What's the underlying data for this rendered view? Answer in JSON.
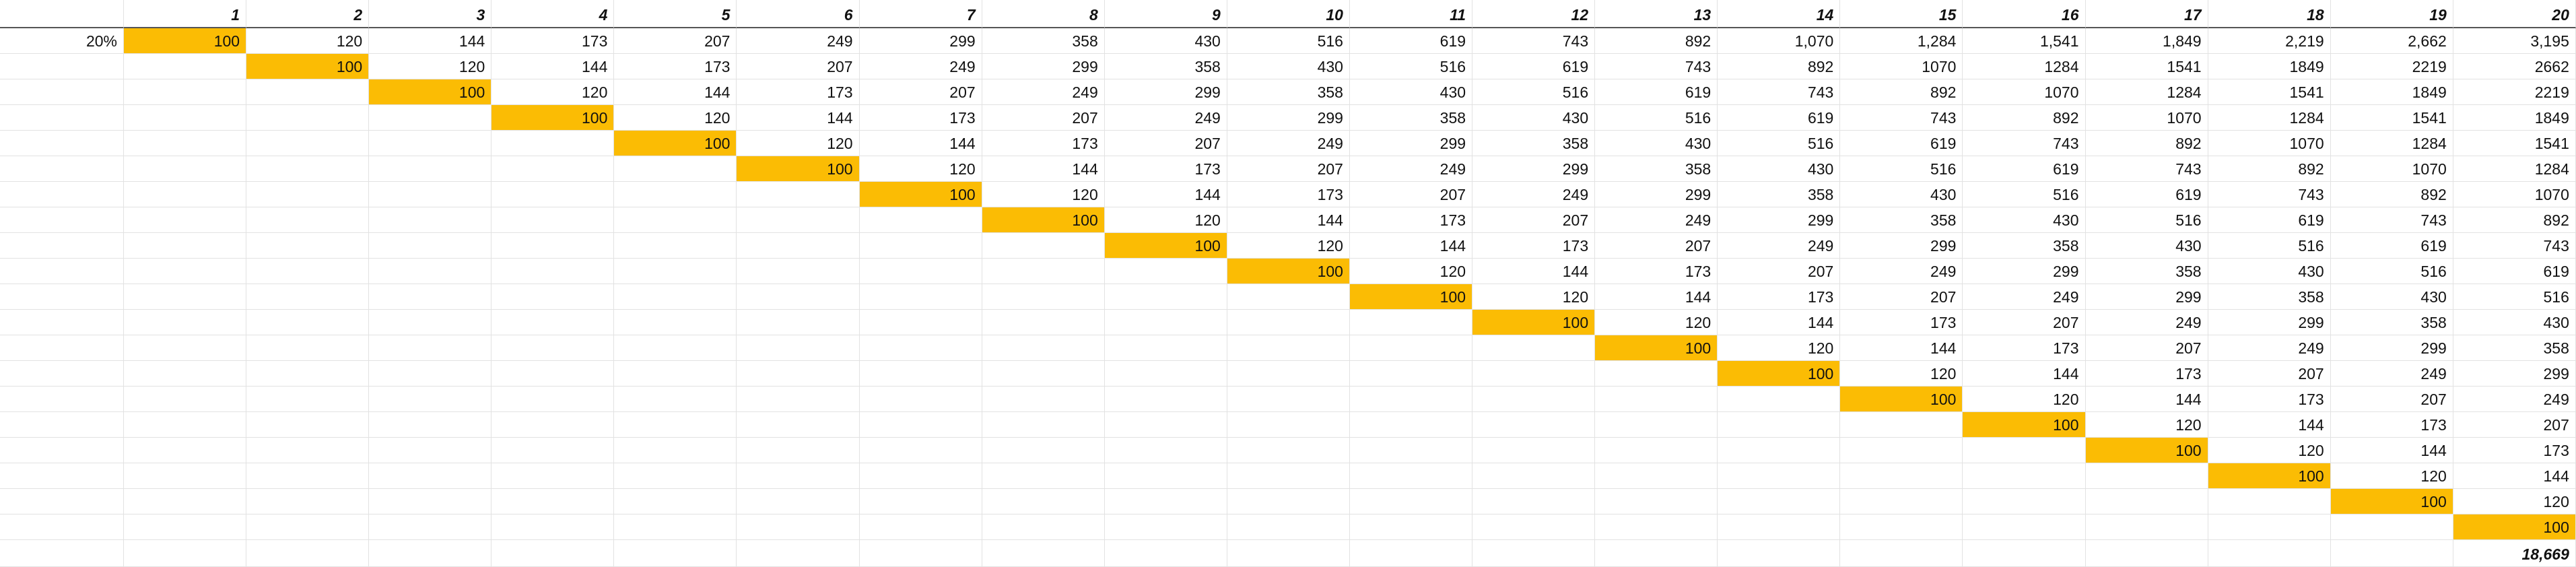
{
  "highlight_color": "#fbbc04",
  "rate_label": "20%",
  "column_headers": [
    "1",
    "2",
    "3",
    "4",
    "5",
    "6",
    "7",
    "8",
    "9",
    "10",
    "11",
    "12",
    "13",
    "14",
    "15",
    "16",
    "17",
    "18",
    "19",
    "20"
  ],
  "rows": [
    [
      "100",
      "120",
      "144",
      "173",
      "207",
      "249",
      "299",
      "358",
      "430",
      "516",
      "619",
      "743",
      "892",
      "1,070",
      "1,284",
      "1,541",
      "1,849",
      "2,219",
      "2,662",
      "3,195"
    ],
    [
      "",
      "100",
      "120",
      "144",
      "173",
      "207",
      "249",
      "299",
      "358",
      "430",
      "516",
      "619",
      "743",
      "892",
      "1070",
      "1284",
      "1541",
      "1849",
      "2219",
      "2662"
    ],
    [
      "",
      "",
      "100",
      "120",
      "144",
      "173",
      "207",
      "249",
      "299",
      "358",
      "430",
      "516",
      "619",
      "743",
      "892",
      "1070",
      "1284",
      "1541",
      "1849",
      "2219"
    ],
    [
      "",
      "",
      "",
      "100",
      "120",
      "144",
      "173",
      "207",
      "249",
      "299",
      "358",
      "430",
      "516",
      "619",
      "743",
      "892",
      "1070",
      "1284",
      "1541",
      "1849"
    ],
    [
      "",
      "",
      "",
      "",
      "100",
      "120",
      "144",
      "173",
      "207",
      "249",
      "299",
      "358",
      "430",
      "516",
      "619",
      "743",
      "892",
      "1070",
      "1284",
      "1541"
    ],
    [
      "",
      "",
      "",
      "",
      "",
      "100",
      "120",
      "144",
      "173",
      "207",
      "249",
      "299",
      "358",
      "430",
      "516",
      "619",
      "743",
      "892",
      "1070",
      "1284"
    ],
    [
      "",
      "",
      "",
      "",
      "",
      "",
      "100",
      "120",
      "144",
      "173",
      "207",
      "249",
      "299",
      "358",
      "430",
      "516",
      "619",
      "743",
      "892",
      "1070"
    ],
    [
      "",
      "",
      "",
      "",
      "",
      "",
      "",
      "100",
      "120",
      "144",
      "173",
      "207",
      "249",
      "299",
      "358",
      "430",
      "516",
      "619",
      "743",
      "892"
    ],
    [
      "",
      "",
      "",
      "",
      "",
      "",
      "",
      "",
      "100",
      "120",
      "144",
      "173",
      "207",
      "249",
      "299",
      "358",
      "430",
      "516",
      "619",
      "743"
    ],
    [
      "",
      "",
      "",
      "",
      "",
      "",
      "",
      "",
      "",
      "100",
      "120",
      "144",
      "173",
      "207",
      "249",
      "299",
      "358",
      "430",
      "516",
      "619"
    ],
    [
      "",
      "",
      "",
      "",
      "",
      "",
      "",
      "",
      "",
      "",
      "100",
      "120",
      "144",
      "173",
      "207",
      "249",
      "299",
      "358",
      "430",
      "516"
    ],
    [
      "",
      "",
      "",
      "",
      "",
      "",
      "",
      "",
      "",
      "",
      "",
      "100",
      "120",
      "144",
      "173",
      "207",
      "249",
      "299",
      "358",
      "430"
    ],
    [
      "",
      "",
      "",
      "",
      "",
      "",
      "",
      "",
      "",
      "",
      "",
      "",
      "100",
      "120",
      "144",
      "173",
      "207",
      "249",
      "299",
      "358"
    ],
    [
      "",
      "",
      "",
      "",
      "",
      "",
      "",
      "",
      "",
      "",
      "",
      "",
      "",
      "100",
      "120",
      "144",
      "173",
      "207",
      "249",
      "299"
    ],
    [
      "",
      "",
      "",
      "",
      "",
      "",
      "",
      "",
      "",
      "",
      "",
      "",
      "",
      "",
      "100",
      "120",
      "144",
      "173",
      "207",
      "249"
    ],
    [
      "",
      "",
      "",
      "",
      "",
      "",
      "",
      "",
      "",
      "",
      "",
      "",
      "",
      "",
      "",
      "100",
      "120",
      "144",
      "173",
      "207"
    ],
    [
      "",
      "",
      "",
      "",
      "",
      "",
      "",
      "",
      "",
      "",
      "",
      "",
      "",
      "",
      "",
      "",
      "100",
      "120",
      "144",
      "173"
    ],
    [
      "",
      "",
      "",
      "",
      "",
      "",
      "",
      "",
      "",
      "",
      "",
      "",
      "",
      "",
      "",
      "",
      "",
      "100",
      "120",
      "144"
    ],
    [
      "",
      "",
      "",
      "",
      "",
      "",
      "",
      "",
      "",
      "",
      "",
      "",
      "",
      "",
      "",
      "",
      "",
      "",
      "100",
      "120"
    ],
    [
      "",
      "",
      "",
      "",
      "",
      "",
      "",
      "",
      "",
      "",
      "",
      "",
      "",
      "",
      "",
      "",
      "",
      "",
      "",
      "100"
    ]
  ],
  "total": "18,669"
}
